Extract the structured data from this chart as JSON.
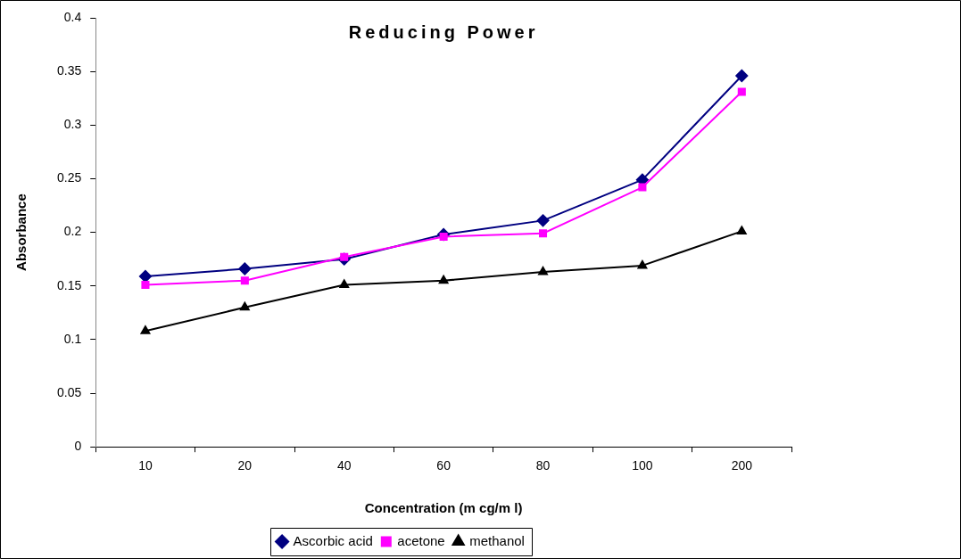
{
  "chart_data": {
    "type": "line",
    "title": "Reducing Power",
    "xlabel": "Concentration (m cg/m l)",
    "ylabel": "Absorbance",
    "categories": [
      "10",
      "20",
      "40",
      "60",
      "80",
      "100",
      "200"
    ],
    "series": [
      {
        "name": "Ascorbic acid",
        "color": "#000080",
        "marker": "diamond",
        "values": [
          0.159,
          0.166,
          0.175,
          0.198,
          0.211,
          0.249,
          0.346
        ]
      },
      {
        "name": "acetone",
        "color": "#ff00ff",
        "marker": "square",
        "values": [
          0.151,
          0.155,
          0.177,
          0.196,
          0.199,
          0.242,
          0.331
        ]
      },
      {
        "name": "methanol",
        "color": "#000000",
        "marker": "triangle",
        "values": [
          0.108,
          0.13,
          0.151,
          0.155,
          0.163,
          0.169,
          0.201
        ]
      }
    ],
    "ylim": [
      0,
      0.4
    ],
    "yticks": [
      0,
      0.05,
      0.1,
      0.15,
      0.2,
      0.25,
      0.3,
      0.35,
      0.4
    ],
    "grid": false,
    "legend": "bottom",
    "line_style": "solid"
  }
}
